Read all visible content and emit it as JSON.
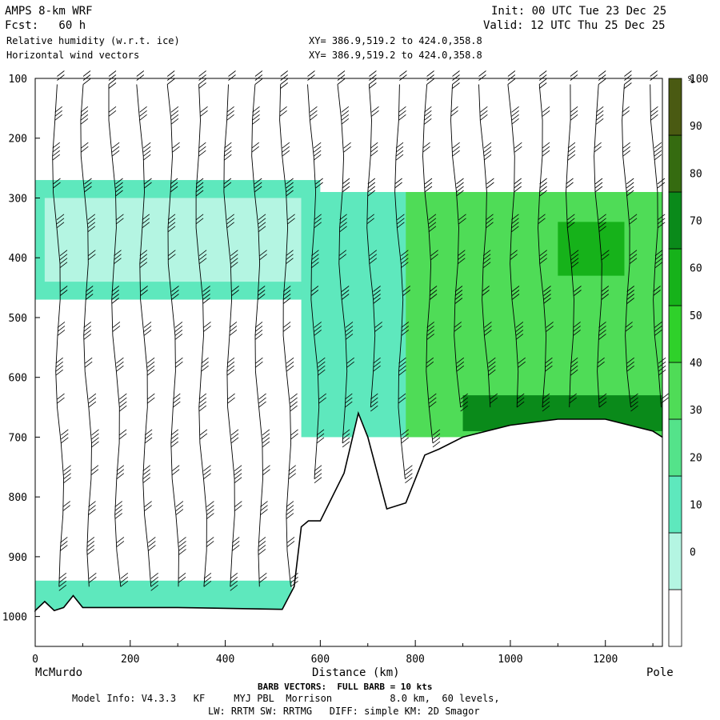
{
  "header": {
    "model": "AMPS 8-km WRF",
    "fcst": "Fcst:   60 h",
    "init": "Init: 00 UTC Tue 23 Dec 25",
    "valid": "Valid: 12 UTC Thu 25 Dec 25",
    "field1": "Relative humidity (w.r.t. ice)",
    "field2": "Horizontal wind vectors",
    "xy1": "XY= 386.9,519.2 to 424.0,358.8",
    "xy2": "XY= 386.9,519.2 to 424.0,358.8"
  },
  "footer": {
    "left_label": "McMurdo",
    "right_label": "Pole",
    "barb_note": "BARB VECTORS:  FULL BARB = 10 kts",
    "model_info": "Model Info: V4.3.3   KF     MYJ PBL  Morrison          8.0 km,  60 levels,",
    "model_info2": "LW: RRTM SW: RRTMG   DIFF: simple KM: 2D Smagor"
  },
  "chart_data": {
    "type": "heatmap",
    "title": "Relative humidity (w.r.t. ice)",
    "xlabel": "Distance (km)",
    "ylabel": "",
    "xlim": [
      0,
      1320
    ],
    "ylim": [
      1050,
      100
    ],
    "x_ticks": [
      0,
      200,
      400,
      600,
      800,
      1000,
      1200
    ],
    "y_ticks": [
      100,
      200,
      300,
      400,
      500,
      600,
      700,
      800,
      900,
      1000
    ],
    "colorbar": {
      "unit": "%",
      "labels": [
        100,
        90,
        80,
        70,
        60,
        50,
        40,
        30,
        20,
        10,
        0
      ],
      "bins": [
        {
          "min": -10,
          "max": 30,
          "color": "#ffffff"
        },
        {
          "min": 30,
          "max": 40,
          "color": "#b4f5e2"
        },
        {
          "min": 40,
          "max": 50,
          "color": "#5ee8bd"
        },
        {
          "min": 50,
          "max": 60,
          "color": "#54e38a"
        },
        {
          "min": 60,
          "max": 70,
          "color": "#4fdc57"
        },
        {
          "min": 70,
          "max": 80,
          "color": "#2fd12a"
        },
        {
          "min": 80,
          "max": 90,
          "color": "#16b21a"
        },
        {
          "min": 90,
          "max": 100,
          "color": "#0a8a1a"
        },
        {
          "min": 100,
          "max": 110,
          "color": "#356b10"
        },
        {
          "min": 110,
          "max": 120,
          "color": "#4a5a12"
        }
      ]
    },
    "terrain": [
      [
        0,
        990
      ],
      [
        20,
        975
      ],
      [
        40,
        990
      ],
      [
        60,
        985
      ],
      [
        80,
        965
      ],
      [
        100,
        985
      ],
      [
        300,
        985
      ],
      [
        520,
        988
      ],
      [
        545,
        950
      ],
      [
        560,
        850
      ],
      [
        575,
        840
      ],
      [
        600,
        840
      ],
      [
        650,
        760
      ],
      [
        680,
        660
      ],
      [
        700,
        700
      ],
      [
        740,
        820
      ],
      [
        780,
        810
      ],
      [
        800,
        770
      ],
      [
        820,
        730
      ],
      [
        850,
        720
      ],
      [
        900,
        700
      ],
      [
        1000,
        680
      ],
      [
        1100,
        670
      ],
      [
        1200,
        670
      ],
      [
        1300,
        690
      ],
      [
        1320,
        700
      ]
    ],
    "humid_regions": [
      {
        "x": [
          0,
          600
        ],
        "p": [
          270,
          470
        ],
        "rh": 45
      },
      {
        "x": [
          20,
          560
        ],
        "p": [
          300,
          440
        ],
        "rh": 35
      },
      {
        "x": [
          560,
          860
        ],
        "p": [
          290,
          700
        ],
        "rh": 45
      },
      {
        "x": [
          780,
          1320
        ],
        "p": [
          290,
          700
        ],
        "rh": 65
      },
      {
        "x": [
          1100,
          1240
        ],
        "p": [
          340,
          430
        ],
        "rh": 85
      },
      {
        "x": [
          900,
          1320
        ],
        "p": [
          630,
          690
        ],
        "rh": 95
      },
      {
        "x": [
          0,
          540
        ],
        "p": [
          940,
          990
        ],
        "rh": 45
      }
    ],
    "barb_columns_km": [
      40,
      100,
      160,
      220,
      280,
      340,
      400,
      460,
      520,
      580,
      640,
      700,
      760,
      820,
      880,
      940,
      1000,
      1060,
      1120,
      1180,
      1240,
      1300
    ],
    "barb_levels_hPa": [
      110,
      170,
      230,
      290,
      350,
      410,
      470,
      530,
      590,
      650,
      710,
      770,
      830,
      890,
      950
    ]
  }
}
